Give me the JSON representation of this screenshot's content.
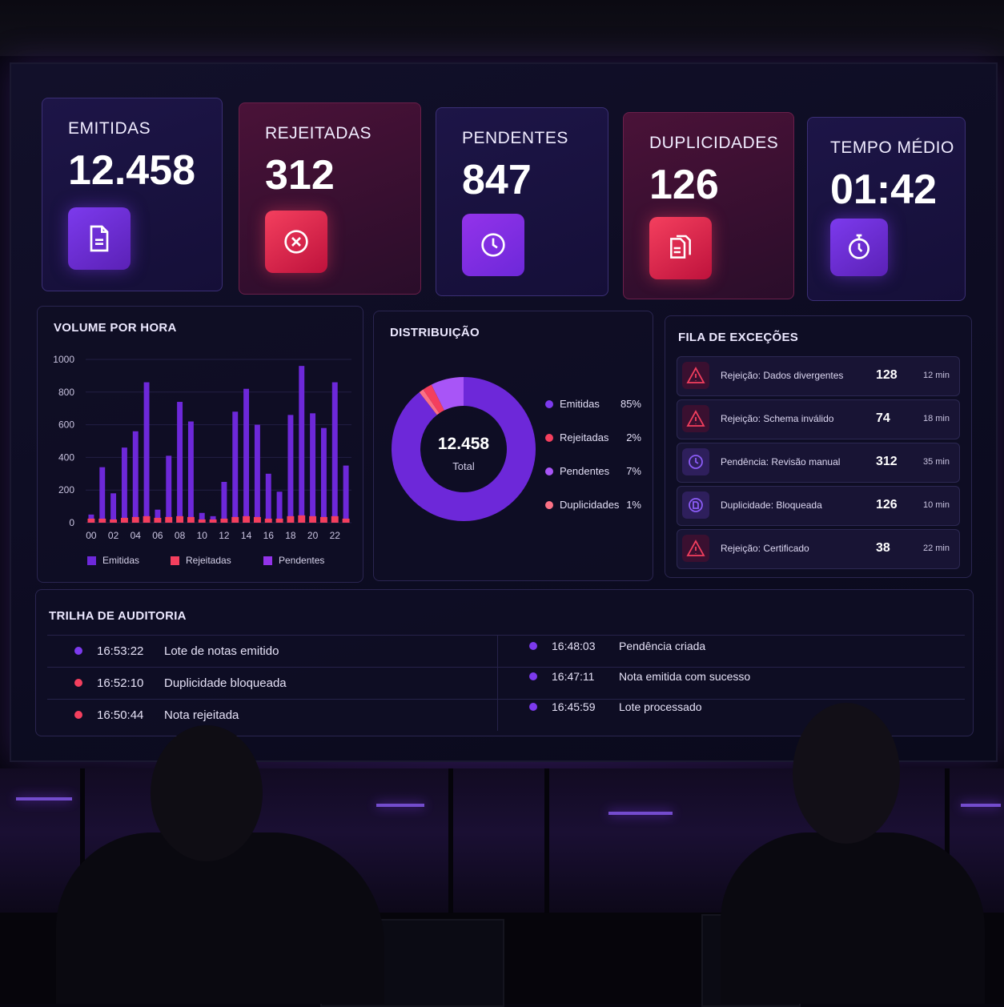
{
  "kpis": [
    {
      "label": "EMITIDAS",
      "value": "12.458",
      "icon": "document-icon",
      "tone": "blue"
    },
    {
      "label": "REJEITADAS",
      "value": "312",
      "icon": "x-circle-icon",
      "tone": "red"
    },
    {
      "label": "PENDENTES",
      "value": "847",
      "icon": "clock-icon",
      "tone": "blue"
    },
    {
      "label": "DUPLICIDADES",
      "value": "126",
      "icon": "copy-documents-icon",
      "tone": "red"
    },
    {
      "label": "TEMPO MÉDIO",
      "value": "01:42",
      "icon": "stopwatch-icon",
      "tone": "blue"
    }
  ],
  "volume": {
    "title": "VOLUME POR HORA",
    "legend": [
      "Emitidas",
      "Rejeitadas",
      "Pendentes"
    ]
  },
  "distribution": {
    "title": "DISTRIBUIÇÃO",
    "center_value": "12.458",
    "center_label": "Total",
    "items": [
      {
        "label": "Emitidas",
        "pct": "85%",
        "value": 85,
        "color": "#6d28d9"
      },
      {
        "label": "Rejeitadas",
        "pct": "2%",
        "value": 2,
        "color": "#f43f5e"
      },
      {
        "label": "Pendentes",
        "pct": "7%",
        "value": 7,
        "color": "#a855f7"
      },
      {
        "label": "Duplicidades",
        "pct": "1%",
        "value": 1,
        "color": "#fb7185"
      }
    ]
  },
  "exceptions": {
    "title": "FILA DE EXCEÇÕES",
    "rows": [
      {
        "icon": "warning-icon",
        "label": "Rejeição: Dados divergentes",
        "count": "128",
        "time": "12 min"
      },
      {
        "icon": "warning-icon",
        "label": "Rejeição: Schema inválido",
        "count": "74",
        "time": "18 min"
      },
      {
        "icon": "clock-icon",
        "label": "Pendência: Revisão manual",
        "count": "312",
        "time": "35 min"
      },
      {
        "icon": "duplicate-icon",
        "label": "Duplicidade: Bloqueada",
        "count": "126",
        "time": "10 min"
      },
      {
        "icon": "warning-icon",
        "label": "Rejeição: Certificado",
        "count": "38",
        "time": "22 min"
      }
    ]
  },
  "audit": {
    "title": "TRILHA DE AUDITORIA",
    "left": [
      {
        "time": "16:53:22",
        "text": "Lote de notas emitido",
        "color": "#7c3aed"
      },
      {
        "time": "16:52:10",
        "text": "Duplicidade bloqueada",
        "color": "#f43f5e"
      },
      {
        "time": "16:50:44",
        "text": "Nota rejeitada",
        "color": "#f43f5e"
      }
    ],
    "right": [
      {
        "time": "16:48:03",
        "text": "Pendência criada",
        "color": "#7c3aed"
      },
      {
        "time": "16:47:11",
        "text": "Nota emitida com sucesso",
        "color": "#7c3aed"
      },
      {
        "time": "16:45:59",
        "text": "Lote processado",
        "color": "#7c3aed"
      }
    ]
  },
  "chart_data": {
    "type": "bar",
    "title": "VOLUME POR HORA",
    "categories": [
      "00",
      "01",
      "02",
      "03",
      "04",
      "05",
      "06",
      "07",
      "08",
      "09",
      "10",
      "11",
      "12",
      "13",
      "14",
      "15",
      "16",
      "17",
      "18",
      "19",
      "20",
      "21",
      "22",
      "23"
    ],
    "x_tick_labels": [
      "00",
      "02",
      "04",
      "06",
      "08",
      "10",
      "12",
      "14",
      "16",
      "18",
      "20",
      "22"
    ],
    "series": [
      {
        "name": "Emitidas",
        "color": "#6d28d9",
        "values": [
          50,
          340,
          180,
          460,
          560,
          860,
          80,
          410,
          740,
          620,
          60,
          40,
          250,
          680,
          820,
          600,
          300,
          190,
          660,
          960,
          670,
          580,
          860,
          350
        ]
      },
      {
        "name": "Rejeitadas",
        "color": "#f43f5e",
        "values": [
          25,
          25,
          20,
          30,
          35,
          40,
          30,
          35,
          40,
          35,
          20,
          20,
          25,
          35,
          40,
          35,
          25,
          25,
          40,
          45,
          40,
          35,
          40,
          25
        ]
      },
      {
        "name": "Pendentes",
        "color": "#9333ea",
        "values": [
          0,
          0,
          0,
          0,
          0,
          0,
          0,
          0,
          0,
          0,
          0,
          0,
          0,
          0,
          0,
          0,
          0,
          0,
          0,
          0,
          0,
          0,
          0,
          0
        ]
      }
    ],
    "y_ticks": [
      0,
      200,
      400,
      600,
      800,
      1000
    ],
    "ylim": [
      0,
      1000
    ]
  }
}
